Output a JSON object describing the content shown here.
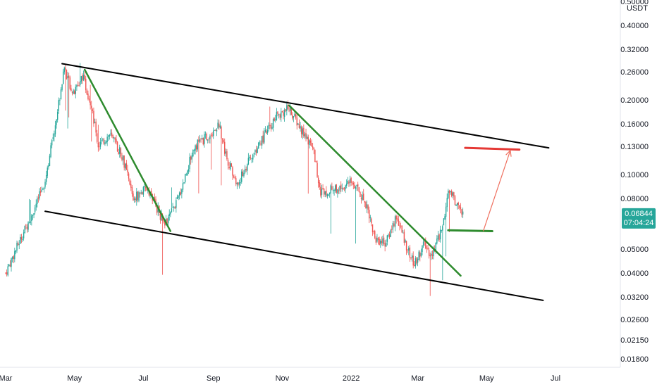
{
  "chart_data": {
    "type": "candlestick",
    "scale": "log",
    "quote_currency": "USDT",
    "colors": {
      "up": "#26a69a",
      "down": "#ef5350",
      "channel": "#000000",
      "trendline": "#2e8b2e",
      "target": "#e53935",
      "support": "#2e8b2e",
      "arrow": "#ef6f5e",
      "price_tag": "#26a69a"
    },
    "y_ticks": [
      0.5,
      0.4,
      0.32,
      0.26,
      0.2,
      0.16,
      0.13,
      0.1,
      0.08,
      0.05,
      0.04,
      0.032,
      0.026,
      0.0215,
      0.018
    ],
    "y_tick_labels": [
      "0.50000",
      "0.40000",
      "0.32000",
      "0.26000",
      "0.20000",
      "0.16000",
      "0.13000",
      "0.10000",
      "0.08000",
      "0.05000",
      "0.04000",
      "0.03200",
      "0.02600",
      "0.02150",
      "0.01800"
    ],
    "x_tick_labels": [
      "Mar",
      "May",
      "Jul",
      "Sep",
      "Nov",
      "2022",
      "Mar",
      "May",
      "Jul"
    ],
    "x_tick_dates": [
      "2021-03-01",
      "2021-05-01",
      "2021-07-01",
      "2021-09-01",
      "2021-11-01",
      "2022-01-01",
      "2022-03-01",
      "2022-05-01",
      "2022-07-01"
    ],
    "last_price": "0.06844",
    "countdown": "07:04:24",
    "path": [
      [
        "2021-03-01",
        0.04
      ],
      [
        "2021-03-15",
        0.056
      ],
      [
        "2021-03-28",
        0.075
      ],
      [
        "2021-04-05",
        0.095
      ],
      [
        "2021-04-15",
        0.17
      ],
      [
        "2021-04-22",
        0.27
      ],
      [
        "2021-04-30",
        0.21
      ],
      [
        "2021-05-08",
        0.25
      ],
      [
        "2021-05-16",
        0.19
      ],
      [
        "2021-05-22",
        0.13
      ],
      [
        "2021-06-01",
        0.145
      ],
      [
        "2021-06-12",
        0.12
      ],
      [
        "2021-06-22",
        0.08
      ],
      [
        "2021-07-05",
        0.088
      ],
      [
        "2021-07-20",
        0.062
      ],
      [
        "2021-08-01",
        0.08
      ],
      [
        "2021-08-15",
        0.13
      ],
      [
        "2021-08-25",
        0.14
      ],
      [
        "2021-09-06",
        0.16
      ],
      [
        "2021-09-12",
        0.12
      ],
      [
        "2021-09-22",
        0.09
      ],
      [
        "2021-10-01",
        0.11
      ],
      [
        "2021-10-15",
        0.14
      ],
      [
        "2021-10-28",
        0.175
      ],
      [
        "2021-11-07",
        0.185
      ],
      [
        "2021-11-18",
        0.15
      ],
      [
        "2021-11-28",
        0.13
      ],
      [
        "2021-12-05",
        0.085
      ],
      [
        "2021-12-20",
        0.088
      ],
      [
        "2022-01-03",
        0.093
      ],
      [
        "2022-01-15",
        0.075
      ],
      [
        "2022-01-22",
        0.055
      ],
      [
        "2022-02-01",
        0.053
      ],
      [
        "2022-02-10",
        0.068
      ],
      [
        "2022-02-20",
        0.05
      ],
      [
        "2022-02-26",
        0.043
      ],
      [
        "2022-03-06",
        0.052
      ],
      [
        "2022-03-14",
        0.047
      ],
      [
        "2022-03-22",
        0.06
      ],
      [
        "2022-03-29",
        0.087
      ],
      [
        "2022-04-05",
        0.075
      ],
      [
        "2022-04-10",
        0.0684
      ]
    ],
    "annotations": {
      "channel_upper": [
        [
          "2021-04-20",
          0.28
        ],
        [
          "2022-06-25",
          0.128
        ]
      ],
      "channel_lower": [
        [
          "2021-04-05",
          0.071
        ],
        [
          "2022-06-20",
          0.031
        ]
      ],
      "trendline_1": [
        [
          "2021-05-10",
          0.265
        ],
        [
          "2021-07-25",
          0.059
        ]
      ],
      "trendline_2": [
        [
          "2021-11-07",
          0.19
        ],
        [
          "2022-04-08",
          0.039
        ]
      ],
      "target_level": [
        [
          "2022-04-12",
          0.128
        ],
        [
          "2022-05-30",
          0.126
        ]
      ],
      "support_level": [
        [
          "2022-03-28",
          0.0595
        ],
        [
          "2022-05-06",
          0.059
        ]
      ],
      "projection_arrow": [
        [
          "2022-04-28",
          0.059
        ],
        [
          "2022-05-22",
          0.125
        ]
      ]
    }
  }
}
